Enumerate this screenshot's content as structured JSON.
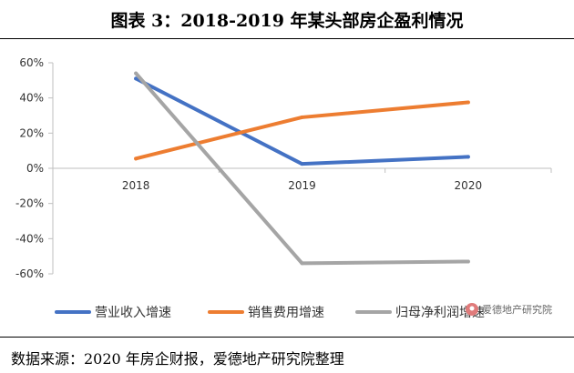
{
  "title": "图表 3：2018-2019 年某头部房企盈利情况",
  "source": "数据来源：2020 年房企财报，爱德地产研究院整理",
  "watermark": "爱德地产研究院",
  "chart_data": {
    "type": "line",
    "categories": [
      "2018",
      "2019",
      "2020"
    ],
    "ylim": [
      -60,
      60
    ],
    "yticks": [
      60,
      40,
      20,
      0,
      -20,
      -40,
      -60
    ],
    "ytick_labels": [
      "60%",
      "40%",
      "20%",
      "0%",
      "-20%",
      "-40%",
      "-60%"
    ],
    "grid": false,
    "legend": "bottom",
    "series": [
      {
        "name": "营业收入增速",
        "color": "#4472C4",
        "values": [
          51,
          2.5,
          6.5
        ]
      },
      {
        "name": "销售费用增速",
        "color": "#ED7D31",
        "values": [
          5.5,
          29,
          37.5
        ]
      },
      {
        "name": "归母净利润增速",
        "color": "#A5A5A5",
        "values": [
          54,
          -54,
          -53
        ]
      }
    ]
  }
}
